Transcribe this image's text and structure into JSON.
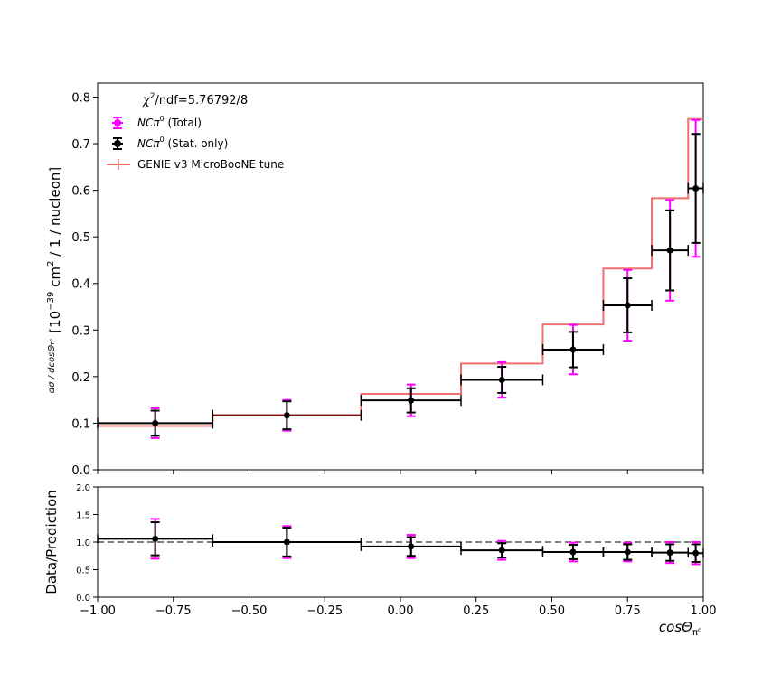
{
  "chart_data": [
    {
      "type": "line",
      "panel": "top",
      "ylabel_frac": "dσ / dcosΘ",
      "ylabel_frac_sub": "π⁰",
      "ylabel_main": "[10",
      "ylabel_exp": "−39",
      "ylabel_tail": " cm",
      "ylabel_exp2": "2",
      "ylabel_end": " / 1 / nucleon]",
      "ylim": [
        0.0,
        0.83
      ],
      "yticks": [
        0.0,
        0.1,
        0.2,
        0.3,
        0.4,
        0.5,
        0.6,
        0.7,
        0.8
      ],
      "ytick_labels": [
        "0.0",
        "0.1",
        "0.2",
        "0.3",
        "0.4",
        "0.5",
        "0.6",
        "0.7",
        "0.8"
      ],
      "xlim": [
        -1.0,
        1.0
      ],
      "bin_edges": [
        -1.0,
        -0.62,
        -0.13,
        0.2,
        0.47,
        0.67,
        0.83,
        0.95,
        1.0
      ],
      "series": [
        {
          "name": "GENIE v3 MicroBooNE tune",
          "kind": "step",
          "values": [
            0.094,
            0.117,
            0.163,
            0.228,
            0.312,
            0.432,
            0.583,
            0.753
          ]
        },
        {
          "name": "NCπ⁰ (Stat. only)",
          "kind": "points",
          "x": [
            -0.81,
            -0.375,
            0.035,
            0.335,
            0.57,
            0.75,
            0.89,
            0.975
          ],
          "values": [
            0.1,
            0.117,
            0.149,
            0.193,
            0.258,
            0.353,
            0.471,
            0.604
          ],
          "stat_err": [
            0.027,
            0.03,
            0.026,
            0.028,
            0.038,
            0.058,
            0.086,
            0.117
          ]
        },
        {
          "name": "NCπ⁰ (Total)",
          "kind": "errorbar",
          "tot_err": [
            0.032,
            0.033,
            0.034,
            0.038,
            0.053,
            0.076,
            0.108,
            0.147
          ]
        }
      ],
      "legend": {
        "title_pre": "χ",
        "title_sup": "2",
        "title_post": "/ndf=5.76792/8",
        "total_pre": "NCπ",
        "total_sup": "0",
        "total_post": " (Total)",
        "stat_pre": "NCπ",
        "stat_sup": "0",
        "stat_post": " (Stat. only)",
        "model": "GENIE v3 MicroBooNE tune",
        "placement": "top-left"
      },
      "colors": {
        "data": "#000000",
        "total_err": "#ff00ff",
        "model": "#f07070",
        "model_dark": "#7a1010"
      }
    },
    {
      "type": "line",
      "panel": "ratio",
      "ylabel": "Data/Prediction",
      "xlabel": "cosΘ",
      "xlabel_sub": "π⁰",
      "ylim": [
        0.0,
        2.0
      ],
      "yticks": [
        0.0,
        0.5,
        1.0,
        1.5,
        2.0
      ],
      "ytick_labels": [
        "0.0",
        "0.5",
        "1.0",
        "1.5",
        "2.0"
      ],
      "xlim": [
        -1.0,
        1.0
      ],
      "xticks": [
        -1.0,
        -0.75,
        -0.5,
        -0.25,
        0.0,
        0.25,
        0.5,
        0.75,
        1.0
      ],
      "xtick_labels": [
        "−1.00",
        "−0.75",
        "−0.50",
        "−0.25",
        "0.00",
        "0.25",
        "0.50",
        "0.75",
        "1.00"
      ],
      "reference_line": 1.0,
      "ratio_values": [
        1.06,
        1.0,
        0.92,
        0.85,
        0.82,
        0.82,
        0.81,
        0.8
      ],
      "stat_err": [
        0.3,
        0.26,
        0.17,
        0.13,
        0.13,
        0.14,
        0.15,
        0.16
      ],
      "tot_err": [
        0.36,
        0.29,
        0.21,
        0.17,
        0.17,
        0.17,
        0.19,
        0.2
      ]
    }
  ]
}
